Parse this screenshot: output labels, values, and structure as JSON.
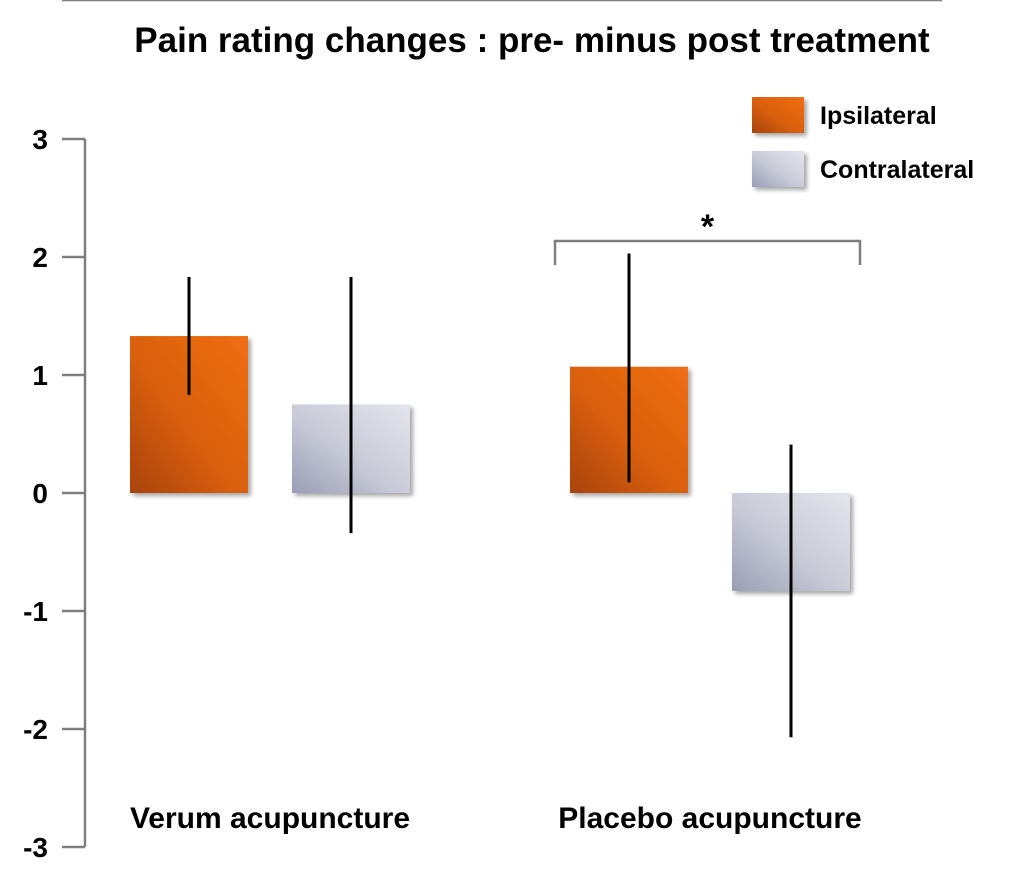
{
  "chart_data": {
    "type": "bar",
    "title": "Pain rating changes : pre- minus post treatment",
    "xlabel": "",
    "ylabel": "",
    "ylim": [
      -3,
      3
    ],
    "yticks": [
      3,
      2,
      1,
      0,
      -1,
      -2,
      -3
    ],
    "ytick_labels": [
      "3",
      "2",
      "1",
      "0",
      "-1",
      "-2",
      "-3"
    ],
    "categories": [
      "Verum acupuncture",
      "Placebo acupuncture"
    ],
    "series": [
      {
        "name": "Ipsilateral",
        "color": "#e26210",
        "values": [
          1.33,
          1.07
        ],
        "error_low": [
          0.83,
          0.09
        ],
        "error_high": [
          1.83,
          2.03
        ]
      },
      {
        "name": "Contralateral",
        "color": "#c3c5d4",
        "values": [
          0.75,
          -0.83
        ],
        "error_low": [
          -0.34,
          -2.07
        ],
        "error_high": [
          1.83,
          0.41
        ]
      }
    ],
    "legend_position": "top-right",
    "annotations": [
      {
        "text": "*",
        "type": "significance-bracket",
        "category": "Placebo acupuncture",
        "between_series": [
          "Ipsilateral",
          "Contralateral"
        ]
      }
    ]
  }
}
